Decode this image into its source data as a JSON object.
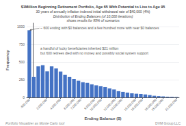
{
  "chart_data": {
    "type": "bar",
    "title": "$1Million Beginning Retirement Portfolio, Age 65 With Potential to Live to Age 95",
    "subtitle": [
      "30 years of annually inflation indexed initial withdrawal rate of $40,000 (4%)",
      "Distribution of Ending Balances (of 10,000 iterations)",
      "shows results for 95% of scenarios"
    ],
    "xlabel": "Ending Balance ($)",
    "ylabel": "Frequency",
    "annotations": [
      "~ 600 ending with $0 balances and a few hundred more with near $0 balances",
      "a handful of lucky beneficiaries inherited $21 million\nbut 600 retirees died with no money and possibly social system support"
    ],
    "footer": [
      "Portfolio Visualizer as Monte Carlo tool",
      "DVM Group LLC"
    ],
    "x": [
      -500000,
      151515.15,
      803030.3,
      1454545.45,
      2106060.61,
      2757575.76,
      3409090.91,
      4060606.06,
      4712121.21,
      5363636.36,
      6015151.52,
      6666666.67,
      7318181.82,
      7969696.97,
      8621212.12,
      9272727.27,
      9924242.42,
      10575757.58,
      11227272.73,
      11878787.88,
      12530303.03,
      13181818.18,
      13833333.33,
      14484848.48,
      15136363.64,
      15787878.79,
      16439393.94,
      17090909.09,
      17742424.24,
      18393939.39,
      19045454.55,
      19696969.7,
      20348484.85,
      21000000
    ],
    "values": [
      950,
      290,
      440,
      455,
      370,
      440,
      410,
      365,
      320,
      290,
      260,
      235,
      215,
      205,
      185,
      170,
      160,
      145,
      128,
      112,
      88,
      78,
      68,
      58,
      52,
      48,
      42,
      33,
      23,
      18,
      14,
      10,
      8,
      6
    ],
    "color": "#4472c4",
    "xlim": [
      -890909.09,
      21390909.09
    ],
    "xticks": [
      {
        "value": -500000,
        "label": "-500,000"
      },
      {
        "value": 2000000,
        "label": "2,000,000"
      },
      {
        "value": 4000000,
        "label": "4,000,000"
      },
      {
        "value": 6000000,
        "label": "6,000,000"
      },
      {
        "value": 7000000,
        "label": "7,000,000"
      },
      {
        "value": 9000000,
        "label": "9,000,000"
      },
      {
        "value": 10000000,
        "label": "10,000,000"
      },
      {
        "value": 12000000,
        "label": "12,000,000"
      },
      {
        "value": 13000000,
        "label": "13,000,000"
      },
      {
        "value": 15000000,
        "label": "15,000,000"
      },
      {
        "value": 16000000,
        "label": "16,000,000"
      },
      {
        "value": 18000000,
        "label": "18,000,000"
      },
      {
        "value": 19000000,
        "label": "19,000,000"
      },
      {
        "value": 21000000,
        "label": "21,000,000"
      }
    ],
    "ylim": [
      0,
      1050
    ],
    "yticks": [
      0,
      250,
      500,
      750,
      1000
    ],
    "grid": true
  }
}
